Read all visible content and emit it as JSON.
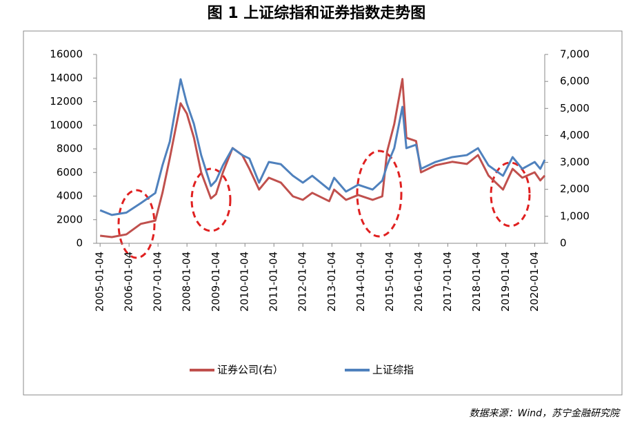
{
  "chart_data": {
    "type": "line",
    "title": "图 1 上证综指和证券指数走势图",
    "source": "数据来源：Wind，苏宁金融研究院",
    "x": [
      "2005-01-04",
      "2005-06-01",
      "2005-12-01",
      "2006-06-01",
      "2006-12-01",
      "2007-03-01",
      "2007-06-01",
      "2007-10-16",
      "2008-01-02",
      "2008-04-01",
      "2008-07-01",
      "2008-11-01",
      "2009-01-04",
      "2009-04-01",
      "2009-08-01",
      "2009-12-01",
      "2010-03-01",
      "2010-07-01",
      "2010-11-01",
      "2011-04-01",
      "2011-09-01",
      "2012-01-04",
      "2012-05-01",
      "2012-12-01",
      "2013-02-01",
      "2013-07-01",
      "2013-12-01",
      "2014-06-01",
      "2014-10-01",
      "2014-12-01",
      "2015-03-01",
      "2015-06-12",
      "2015-08-01",
      "2015-12-01",
      "2016-02-01",
      "2016-08-01",
      "2017-03-01",
      "2017-09-01",
      "2018-01-20",
      "2018-06-01",
      "2018-12-01",
      "2019-04-01",
      "2019-08-01",
      "2020-01-04",
      "2020-03-15",
      "2020-05-10"
    ],
    "series": [
      {
        "name": "证券公司(右）",
        "color": "#c0504d",
        "axis": "y2",
        "values": [
          280,
          230,
          330,
          720,
          840,
          1870,
          3150,
          5190,
          4810,
          3910,
          2630,
          1660,
          1820,
          2630,
          3530,
          3270,
          2760,
          1990,
          2430,
          2250,
          1740,
          1610,
          1870,
          1560,
          1990,
          1610,
          1790,
          1610,
          1740,
          3400,
          4420,
          6090,
          3910,
          3790,
          2630,
          2890,
          3020,
          2940,
          3270,
          2510,
          1990,
          2760,
          2430,
          2630,
          2330,
          2510
        ]
      },
      {
        "name": "上证综指",
        "color": "#4f81bd",
        "values": [
          2800,
          2400,
          2600,
          3400,
          4260,
          6600,
          8600,
          13900,
          11850,
          10100,
          7470,
          4850,
          5310,
          6600,
          8060,
          7470,
          7180,
          5140,
          6890,
          6700,
          5720,
          5140,
          5720,
          4550,
          5550,
          4380,
          4960,
          4550,
          5310,
          6600,
          8060,
          11560,
          8060,
          8350,
          6310,
          6890,
          7300,
          7470,
          8060,
          6600,
          5720,
          7300,
          6310,
          6890,
          6310,
          7070
        ]
      }
    ],
    "xlim": [
      "2004-11-20",
      "2020-05-10"
    ],
    "xticks": [
      "2005-01-04",
      "2006-01-04",
      "2007-01-04",
      "2008-01-04",
      "2009-01-04",
      "2010-01-04",
      "2011-01-04",
      "2012-01-04",
      "2013-01-04",
      "2014-01-04",
      "2015-01-04",
      "2016-01-04",
      "2017-01-04",
      "2018-01-04",
      "2019-01-04",
      "2020-01-04"
    ],
    "ylim": [
      0,
      16000
    ],
    "yticks": [
      0,
      2000,
      4000,
      6000,
      8000,
      10000,
      12000,
      14000,
      16000
    ],
    "y2lim": [
      0,
      7000
    ],
    "y2ticks": [
      0,
      {
        "value": 1000,
        "label": "1,000"
      },
      {
        "value": 2000,
        "label": "2,000"
      },
      {
        "value": 3000,
        "label": "3,000"
      },
      {
        "value": 4000,
        "label": "4,000"
      },
      {
        "value": 5000,
        "label": "5,000"
      },
      {
        "value": 6000,
        "label": "6,000"
      },
      {
        "value": 7000,
        "label": "7,000"
      }
    ],
    "grid": false
  }
}
